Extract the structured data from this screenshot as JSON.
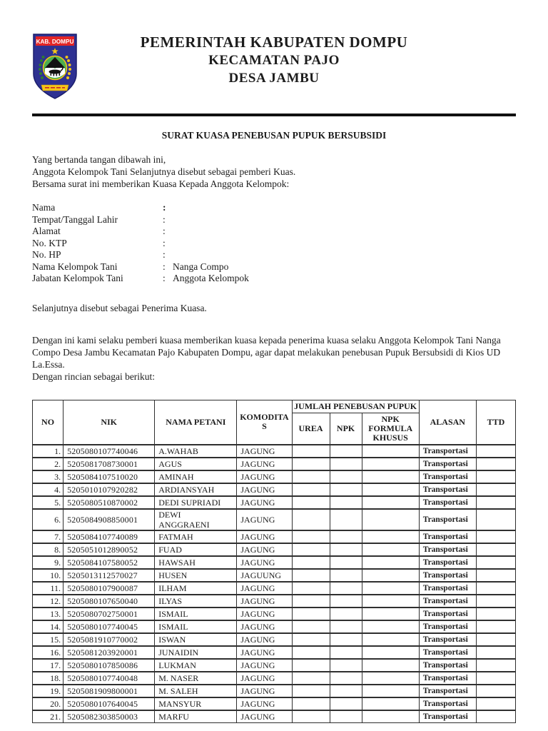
{
  "letterhead": {
    "line1": "PEMERINTAH KABUPATEN DOMPU",
    "line2": "KECAMATAN PAJO",
    "line3": "DESA JAMBU",
    "logo_banner": "KAB. DOMPU",
    "logo_colors": {
      "shield": "#2e3192",
      "banner": "#e32526",
      "circle": "#3fa34d",
      "accent": "#f5c518"
    }
  },
  "doc": {
    "title": "SURAT KUASA PENEBUSAN PUPUK BERSUBSIDI",
    "intro": [
      "Yang bertanda tangan dibawah ini,",
      "Anggota Kelompok Tani Selanjutnya disebut sebagai pemberi Kuas.",
      "Bersama surat ini memberikan Kuasa Kepada Anggota Kelompok:"
    ],
    "colon": ":",
    "fields": [
      {
        "label": "Nama",
        "value": ""
      },
      {
        "label": "Tempat/Tanggal Lahir",
        "value": ""
      },
      {
        "label": "Alamat",
        "value": ""
      },
      {
        "label": "No. KTP",
        "value": ""
      },
      {
        "label": "No. HP",
        "value": ""
      },
      {
        "label": "Nama Kelompok Tani",
        "value": "Nanga Compo"
      },
      {
        "label": "Jabatan Kelompok Tani",
        "value": "Anggota Kelompok"
      }
    ],
    "para_penerima": "Selanjutnya disebut sebagai Penerima Kuasa.",
    "para_kuasa": "Dengan ini kami selaku pemberi kuasa memberikan kuasa kepada penerima kuasa selaku Anggota Kelompok Tani Nanga Compo Desa Jambu Kecamatan Pajo Kabupaten Dompu, agar dapat melakukan penebusan Pupuk Bersubsidi di Kios UD La.Essa.",
    "para_rincian": "Dengan rincian sebagai berikut:"
  },
  "table": {
    "headers": {
      "no": "NO",
      "nik": "NIK",
      "nama": "NAMA PETANI",
      "komoditas": "KOMODITAS",
      "jumlah": "JUMLAH PENEBUSAN PUPUK",
      "urea": "UREA",
      "npk": "NPK",
      "npk_fk": "NPK FORMULA KHUSUS",
      "alasan": "ALASAN",
      "ttd": "TTD"
    },
    "rows": [
      {
        "no": "1.",
        "nik": "5205080107740046",
        "nama": "A.WAHAB",
        "komoditas": "JAGUNG",
        "urea": "",
        "npk": "",
        "npk_fk": "",
        "alasan": "Transportasi",
        "ttd": ""
      },
      {
        "no": "2.",
        "nik": "5205081708730001",
        "nama": "AGUS",
        "komoditas": "JAGUNG",
        "urea": "",
        "npk": "",
        "npk_fk": "",
        "alasan": "Transportasi",
        "ttd": ""
      },
      {
        "no": "3.",
        "nik": "5205084107510020",
        "nama": "AMINAH",
        "komoditas": "JAGUNG",
        "urea": "",
        "npk": "",
        "npk_fk": "",
        "alasan": "Transportasi",
        "ttd": ""
      },
      {
        "no": "4.",
        "nik": "5205010107920282",
        "nama": "ARDIANSYAH",
        "komoditas": "JAGUNG",
        "urea": "",
        "npk": "",
        "npk_fk": "",
        "alasan": "Transportasi",
        "ttd": ""
      },
      {
        "no": "5.",
        "nik": "5205080510870002",
        "nama": "DEDI SUPRIADI",
        "komoditas": "JAGUNG",
        "urea": "",
        "npk": "",
        "npk_fk": "",
        "alasan": "Transportasi",
        "ttd": ""
      },
      {
        "no": "6.",
        "nik": "5205084908850001",
        "nama": "DEWI ANGGRAENI",
        "komoditas": "JAGUNG",
        "urea": "",
        "npk": "",
        "npk_fk": "",
        "alasan": "Transportasi",
        "ttd": ""
      },
      {
        "no": "7.",
        "nik": "5205084107740089",
        "nama": "FATMAH",
        "komoditas": "JAGUNG",
        "urea": "",
        "npk": "",
        "npk_fk": "",
        "alasan": "Transportasi",
        "ttd": ""
      },
      {
        "no": "8.",
        "nik": "5205051012890052",
        "nama": "FUAD",
        "komoditas": "JAGUNG",
        "urea": "",
        "npk": "",
        "npk_fk": "",
        "alasan": "Transportasi",
        "ttd": ""
      },
      {
        "no": "9.",
        "nik": "5205084107580052",
        "nama": "HAWSAH",
        "komoditas": "JAGUNG",
        "urea": "",
        "npk": "",
        "npk_fk": "",
        "alasan": "Transportasi",
        "ttd": ""
      },
      {
        "no": "10.",
        "nik": "5205013112570027",
        "nama": "HUSEN",
        "komoditas": "JAGUUNG",
        "urea": "",
        "npk": "",
        "npk_fk": "",
        "alasan": "Transportasi",
        "ttd": ""
      },
      {
        "no": "11.",
        "nik": "5205080107900087",
        "nama": "ILHAM",
        "komoditas": "JAGUNG",
        "urea": "",
        "npk": "",
        "npk_fk": "",
        "alasan": "Transportasi",
        "ttd": ""
      },
      {
        "no": "12.",
        "nik": "5205080107650040",
        "nama": "ILYAS",
        "komoditas": "JAGUNG",
        "urea": "",
        "npk": "",
        "npk_fk": "",
        "alasan": "Transportasi",
        "ttd": ""
      },
      {
        "no": "13.",
        "nik": "5205080702750001",
        "nama": "ISMAIL",
        "komoditas": "JAGUNG",
        "urea": "",
        "npk": "",
        "npk_fk": "",
        "alasan": "Transportasi",
        "ttd": ""
      },
      {
        "no": "14.",
        "nik": "5205080107740045",
        "nama": "ISMAIL",
        "komoditas": "JAGUNG",
        "urea": "",
        "npk": "",
        "npk_fk": "",
        "alasan": "Transportasi",
        "ttd": ""
      },
      {
        "no": "15.",
        "nik": "5205081910770002",
        "nama": "ISWAN",
        "komoditas": "JAGUNG",
        "urea": "",
        "npk": "",
        "npk_fk": "",
        "alasan": "Transportasi",
        "ttd": ""
      },
      {
        "no": "16.",
        "nik": "5205081203920001",
        "nama": "JUNAIDIN",
        "komoditas": "JAGUNG",
        "urea": "",
        "npk": "",
        "npk_fk": "",
        "alasan": "Transportasi",
        "ttd": ""
      },
      {
        "no": "17.",
        "nik": "5205080107850086",
        "nama": "LUKMAN",
        "komoditas": "JAGUNG",
        "urea": "",
        "npk": "",
        "npk_fk": "",
        "alasan": "Transportasi",
        "ttd": ""
      },
      {
        "no": "18.",
        "nik": "5205080107740048",
        "nama": "M. NASER",
        "komoditas": "JAGUNG",
        "urea": "",
        "npk": "",
        "npk_fk": "",
        "alasan": "Transportasi",
        "ttd": ""
      },
      {
        "no": "19.",
        "nik": "5205081909800001",
        "nama": "M. SALEH",
        "komoditas": "JAGUNG",
        "urea": "",
        "npk": "",
        "npk_fk": "",
        "alasan": "Transportasi",
        "ttd": ""
      },
      {
        "no": "20.",
        "nik": "5205080107640045",
        "nama": "MANSYUR",
        "komoditas": "JAGUNG",
        "urea": "",
        "npk": "",
        "npk_fk": "",
        "alasan": "Transportasi",
        "ttd": ""
      },
      {
        "no": "21.",
        "nik": "5205082303850003",
        "nama": "MARFU",
        "komoditas": "JAGUNG",
        "urea": "",
        "npk": "",
        "npk_fk": "",
        "alasan": "Transportasi",
        "ttd": ""
      }
    ]
  }
}
